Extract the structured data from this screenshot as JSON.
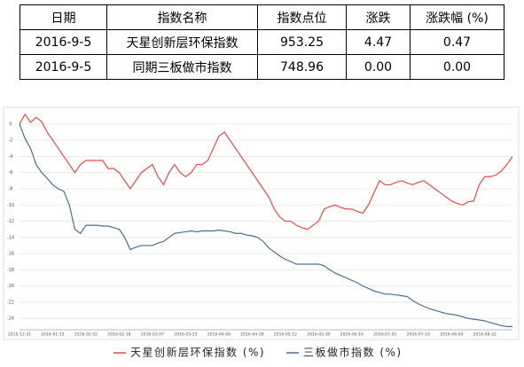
{
  "table": {
    "header": [
      "日期",
      "指数名称",
      "指数点位",
      "涨跌",
      "涨跌幅 (%)"
    ],
    "rows": [
      [
        "2016-9-5",
        "天星创新层环保指数",
        "953.25",
        "4.47",
        "0.47"
      ],
      [
        "2016-9-5",
        "同期三板做市指数",
        "748.96",
        "0.00",
        "0.00"
      ]
    ]
  },
  "chart_data": {
    "type": "line",
    "categories": [
      "2015-12-31",
      null,
      null,
      null,
      null,
      null,
      "2016-01-15",
      null,
      null,
      null,
      null,
      null,
      "2016-02-02",
      null,
      null,
      null,
      null,
      null,
      "2016-02-18",
      null,
      null,
      null,
      null,
      null,
      "2016-03-07",
      null,
      null,
      null,
      null,
      null,
      "2016-03-23",
      null,
      null,
      null,
      null,
      null,
      "2016-04-08",
      null,
      null,
      null,
      null,
      null,
      "2016-04-28",
      null,
      null,
      null,
      null,
      null,
      "2016-05-12",
      null,
      null,
      null,
      null,
      null,
      "2016-05-30",
      null,
      null,
      null,
      null,
      null,
      "2016-06-16",
      null,
      null,
      null,
      null,
      null,
      "2016-07-01",
      null,
      null,
      null,
      null,
      null,
      "2016-07-19",
      null,
      null,
      null,
      null,
      null,
      "2016-08-04",
      null,
      null,
      null,
      null,
      null,
      "2016-08-22",
      null,
      null,
      null,
      null,
      null
    ],
    "series": [
      {
        "name": "天星创新层环保指数 (%)",
        "color": "#e8494a",
        "values": [
          0,
          1.2,
          0.2,
          0.8,
          0.3,
          -1,
          -2,
          -3,
          -4,
          -5,
          -6,
          -5,
          -4.5,
          -4.5,
          -4.5,
          -4.5,
          -5.5,
          -5.5,
          -6,
          -7,
          -8,
          -7,
          -6,
          -5.5,
          -5,
          -6.5,
          -7.5,
          -6,
          -5,
          -6,
          -6.5,
          -6,
          -5,
          -5,
          -4.5,
          -3,
          -1.5,
          -1,
          -2,
          -3,
          -4,
          -5,
          -6,
          -7,
          -8,
          -9,
          -10.5,
          -11.5,
          -12,
          -12,
          -12.5,
          -12.8,
          -13,
          -12.5,
          -12,
          -10.5,
          -10.2,
          -10,
          -10.3,
          -10.5,
          -10.5,
          -10.8,
          -11,
          -10,
          -8.5,
          -7,
          -7.5,
          -7.5,
          -7.2,
          -7,
          -7.3,
          -7.5,
          -7.2,
          -7,
          -7.5,
          -8,
          -8.5,
          -9,
          -9.5,
          -9.8,
          -10,
          -9.6,
          -9.5,
          -7.5,
          -6.5,
          -6.5,
          -6.3,
          -5.8,
          -5,
          -4
        ]
      },
      {
        "name": "三板做市指数 (%)",
        "color": "#4a6f95",
        "values": [
          0,
          -1.8,
          -3,
          -5,
          -6,
          -6.7,
          -7.5,
          -8,
          -8.3,
          -10,
          -13,
          -13.5,
          -12.5,
          -12.5,
          -12.5,
          -12.6,
          -12.6,
          -12.8,
          -13,
          -14,
          -15.5,
          -15.2,
          -15,
          -15,
          -15,
          -14.7,
          -14.5,
          -14,
          -13.5,
          -13.4,
          -13.3,
          -13.2,
          -13.3,
          -13.2,
          -13.2,
          -13.2,
          -13.1,
          -13.2,
          -13.3,
          -13.5,
          -13.5,
          -13.7,
          -13.8,
          -14,
          -14.5,
          -15.3,
          -15.8,
          -16.3,
          -16.7,
          -17,
          -17.3,
          -17.3,
          -17.3,
          -17.3,
          -17.3,
          -17.5,
          -18,
          -18.4,
          -18.7,
          -19,
          -19.3,
          -19.6,
          -20,
          -20.3,
          -20.6,
          -20.8,
          -21,
          -21,
          -21.1,
          -21.2,
          -21.3,
          -21.8,
          -22.2,
          -22.5,
          -22.8,
          -23,
          -23.2,
          -23.4,
          -23.5,
          -23.6,
          -23.8,
          -24,
          -24.1,
          -24.2,
          -24.3,
          -24.5,
          -24.7,
          -24.9,
          -25,
          -25
        ]
      }
    ],
    "ylim": [
      -25.4,
      1.3
    ],
    "yticks": [
      0,
      -2,
      -4,
      -6,
      -8,
      -10,
      -12,
      -14,
      -16,
      -18,
      -20,
      -22,
      -24
    ],
    "grid": true,
    "legend": "bottom"
  }
}
